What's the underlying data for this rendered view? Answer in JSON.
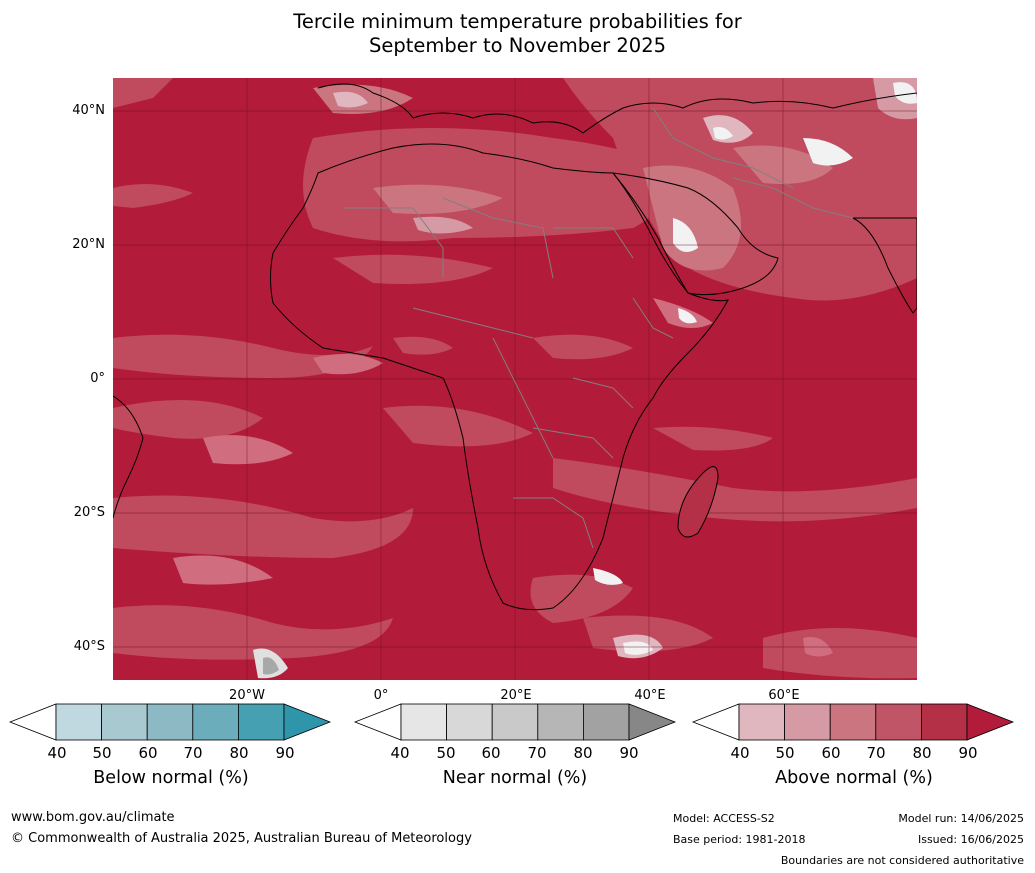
{
  "title_line1": "Tercile minimum temperature probabilities for",
  "title_line2": "September to November 2025",
  "map": {
    "base_color": "#b31b3a",
    "lat_labels": [
      "40°N",
      "20°N",
      "0°",
      "20°S",
      "40°S"
    ],
    "lon_labels": [
      "20°W",
      "0°",
      "20°E",
      "40°E",
      "60°E"
    ],
    "coastline_color": "#000000",
    "border_color": "#808080"
  },
  "legends": [
    {
      "title": "Below normal (%)",
      "ticks": [
        "40",
        "50",
        "60",
        "70",
        "80",
        "90"
      ],
      "colors": [
        "#ffffff",
        "#c0d8df",
        "#a9c9d0",
        "#8cb9c4",
        "#6cadbb",
        "#45a0b2",
        "#2e95ab"
      ]
    },
    {
      "title": "Near normal (%)",
      "ticks": [
        "40",
        "50",
        "60",
        "70",
        "80",
        "90"
      ],
      "colors": [
        "#ffffff",
        "#e6e6e6",
        "#d8d8d8",
        "#c9c9c9",
        "#b6b6b6",
        "#a2a2a2",
        "#878787"
      ]
    },
    {
      "title": "Above normal (%)",
      "ticks": [
        "40",
        "50",
        "60",
        "70",
        "80",
        "90"
      ],
      "colors": [
        "#ffffff",
        "#e0b6bf",
        "#d69aa5",
        "#cb7581",
        "#c05567",
        "#b33046",
        "#b31b3a"
      ]
    }
  ],
  "footer": {
    "website": "www.bom.gov.au/climate",
    "copyright": "© Commonwealth of Australia 2025, Australian Bureau of Meteorology",
    "model": "Model: ACCESS-S2",
    "base_period": "Base period: 1981-2018",
    "model_run": "Model run: 14/06/2025",
    "issued": "Issued: 16/06/2025",
    "disclaimer": "Boundaries are not considered authoritative"
  }
}
